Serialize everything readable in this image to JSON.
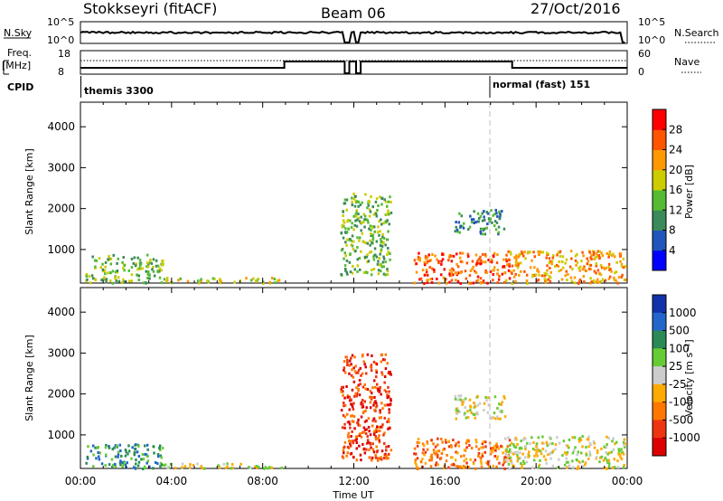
{
  "header": {
    "station": "Stokkseyri (fitACF)",
    "beam": "Beam 06",
    "date": "27/Oct/2016"
  },
  "status_panels": {
    "nsky_label": "N.Sky",
    "nsky_ticks": [
      "10^5",
      "10^0"
    ],
    "nsearch_label": "N.Search",
    "nsearch_ticks": [
      "10^5",
      "10^0"
    ],
    "freq_label_line1": "Freq.",
    "freq_label_line2": "[MHz]",
    "freq_ticks": [
      "18",
      "8"
    ],
    "nave_label": "Nave",
    "nave_ticks": [
      "60",
      "0"
    ],
    "cpid_label": "CPID",
    "cpid_segments": [
      {
        "label": "themis 3300",
        "start_hour": 0
      },
      {
        "label": "normal (fast) 151",
        "start_hour": 18.0
      }
    ]
  },
  "chart_data": [
    {
      "type": "heatmap",
      "name": "power",
      "xlabel": "",
      "ylabel": "Slant Range [km]",
      "xlim": [
        0,
        24
      ],
      "ylim": [
        180,
        4600
      ],
      "y_ticks": [
        "1000",
        "2000",
        "3000",
        "4000"
      ],
      "colorbar_label": "Power [dB]",
      "colorbar_ticks": [
        "4",
        "8",
        "12",
        "16",
        "20",
        "24",
        "28"
      ],
      "colors": [
        "#0000ff",
        "#2255bb",
        "#3a8a5a",
        "#55bb33",
        "#cccc00",
        "#ff9900",
        "#ff5500",
        "#ff0000"
      ],
      "scatter_regions": [
        {
          "t0": 0.2,
          "t1": 3.6,
          "r0": 200,
          "r1": 900,
          "level": 3
        },
        {
          "t0": 3.6,
          "t1": 8.8,
          "r0": 200,
          "r1": 340,
          "level": 4
        },
        {
          "t0": 11.4,
          "t1": 13.6,
          "r0": 400,
          "r1": 2400,
          "level": 3
        },
        {
          "t0": 14.6,
          "t1": 18.8,
          "r0": 200,
          "r1": 950,
          "level": 6
        },
        {
          "t0": 16.4,
          "t1": 18.6,
          "r0": 1400,
          "r1": 2000,
          "level": 2
        },
        {
          "t0": 18.6,
          "t1": 23.9,
          "r0": 200,
          "r1": 1000,
          "level": 5
        }
      ]
    },
    {
      "type": "heatmap",
      "name": "velocity",
      "xlabel": "Time UT",
      "ylabel": "Slant Range [km]",
      "xlim": [
        0,
        24
      ],
      "ylim": [
        180,
        4600
      ],
      "x_ticks": [
        "00:00",
        "04:00",
        "08:00",
        "12:00",
        "16:00",
        "20:00",
        "00:00"
      ],
      "y_ticks": [
        "1000",
        "2000",
        "3000",
        "4000"
      ],
      "colorbar_label": "Velocity [m s⁻¹]",
      "colorbar_ticks": [
        "1000",
        "500",
        "100",
        "25",
        "-25",
        "-100",
        "-500",
        "-1000"
      ],
      "colors": [
        "#1133aa",
        "#2266cc",
        "#2a8a55",
        "#66cc33",
        "#cccccc",
        "#ffaa00",
        "#ff7700",
        "#ee3311",
        "#dd0000"
      ],
      "scatter_regions": [
        {
          "t0": 0.2,
          "t1": 3.6,
          "r0": 200,
          "r1": 800,
          "level": 2
        },
        {
          "t0": 3.6,
          "t1": 8.8,
          "r0": 200,
          "r1": 330,
          "level": 4
        },
        {
          "t0": 11.4,
          "t1": 13.6,
          "r0": 400,
          "r1": 3000,
          "level": 7
        },
        {
          "t0": 14.6,
          "t1": 18.8,
          "r0": 200,
          "r1": 950,
          "level": 6
        },
        {
          "t0": 16.4,
          "t1": 18.6,
          "r0": 1400,
          "r1": 2000,
          "level": 4
        },
        {
          "t0": 18.6,
          "t1": 23.9,
          "r0": 200,
          "r1": 1000,
          "level": 4
        }
      ]
    }
  ]
}
